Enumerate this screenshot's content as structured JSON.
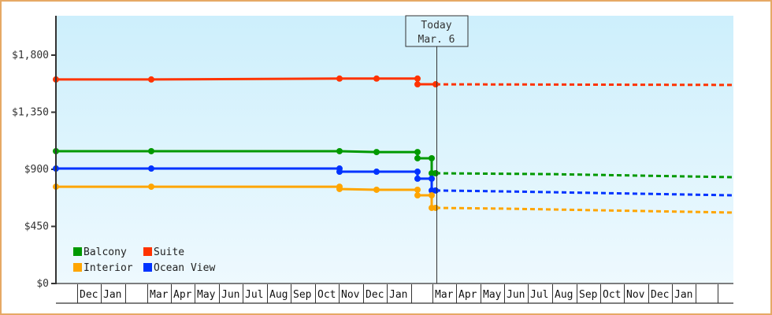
{
  "chart_data": {
    "type": "line",
    "title": "",
    "xlabel": "",
    "ylabel": "",
    "ylim": [
      0,
      2110
    ],
    "yticks": [
      {
        "label": "$0",
        "value": 0
      },
      {
        "label": "$450",
        "value": 450
      },
      {
        "label": "$900",
        "value": 900
      },
      {
        "label": "$1,350",
        "value": 1350
      },
      {
        "label": "$1,800",
        "value": 1800
      }
    ],
    "xticks": [
      "",
      "Dec",
      "Jan",
      "",
      "Mar",
      "Apr",
      "May",
      "Jun",
      "Jul",
      "Aug",
      "Sep",
      "Oct",
      "Nov",
      "Dec",
      "Jan",
      "",
      "Mar",
      "Apr",
      "May",
      "Jun",
      "Jul",
      "Aug",
      "Sep",
      "Oct",
      "Nov",
      "Dec",
      "Jan",
      "",
      ""
    ],
    "today_marker": {
      "line1": "Today",
      "line2": "Mar. 6"
    },
    "legend": [
      {
        "name": "Balcony",
        "color": "#009900"
      },
      {
        "name": "Suite",
        "color": "#ff3300"
      },
      {
        "name": "Interior",
        "color": "#ffa500"
      },
      {
        "name": "Ocean View",
        "color": "#0033ff"
      }
    ],
    "series": [
      {
        "name": "Suite",
        "color": "#ff3300",
        "historical": [
          [
            71,
            1608
          ],
          [
            192,
            1608
          ],
          [
            431,
            1615
          ],
          [
            478,
            1615
          ],
          [
            530,
            1615
          ],
          [
            530,
            1570
          ],
          [
            553,
            1570
          ]
        ],
        "forecast": [
          [
            553,
            1570
          ],
          [
            930,
            1565
          ]
        ]
      },
      {
        "name": "Balcony",
        "color": "#009900",
        "historical": [
          [
            71,
            1043
          ],
          [
            192,
            1043
          ],
          [
            431,
            1043
          ],
          [
            478,
            1036
          ],
          [
            530,
            1036
          ],
          [
            530,
            987
          ],
          [
            548,
            987
          ],
          [
            548,
            869
          ],
          [
            553,
            869
          ]
        ],
        "forecast": [
          [
            553,
            869
          ],
          [
            700,
            862
          ],
          [
            930,
            838
          ]
        ]
      },
      {
        "name": "Ocean View",
        "color": "#0033ff",
        "historical": [
          [
            71,
            906
          ],
          [
            192,
            906
          ],
          [
            431,
            906
          ],
          [
            431,
            881
          ],
          [
            478,
            881
          ],
          [
            530,
            881
          ],
          [
            530,
            826
          ],
          [
            548,
            826
          ],
          [
            548,
            733
          ],
          [
            553,
            733
          ]
        ],
        "forecast": [
          [
            553,
            733
          ],
          [
            640,
            726
          ],
          [
            930,
            695
          ]
        ]
      },
      {
        "name": "Interior",
        "color": "#ffa500",
        "historical": [
          [
            71,
            763
          ],
          [
            192,
            763
          ],
          [
            431,
            763
          ],
          [
            431,
            745
          ],
          [
            478,
            739
          ],
          [
            530,
            739
          ],
          [
            530,
            695
          ],
          [
            548,
            695
          ],
          [
            548,
            596
          ],
          [
            553,
            596
          ]
        ],
        "forecast": [
          [
            553,
            596
          ],
          [
            640,
            590
          ],
          [
            930,
            559
          ]
        ]
      }
    ],
    "grid": false,
    "legend_position": "lower-left inside"
  }
}
